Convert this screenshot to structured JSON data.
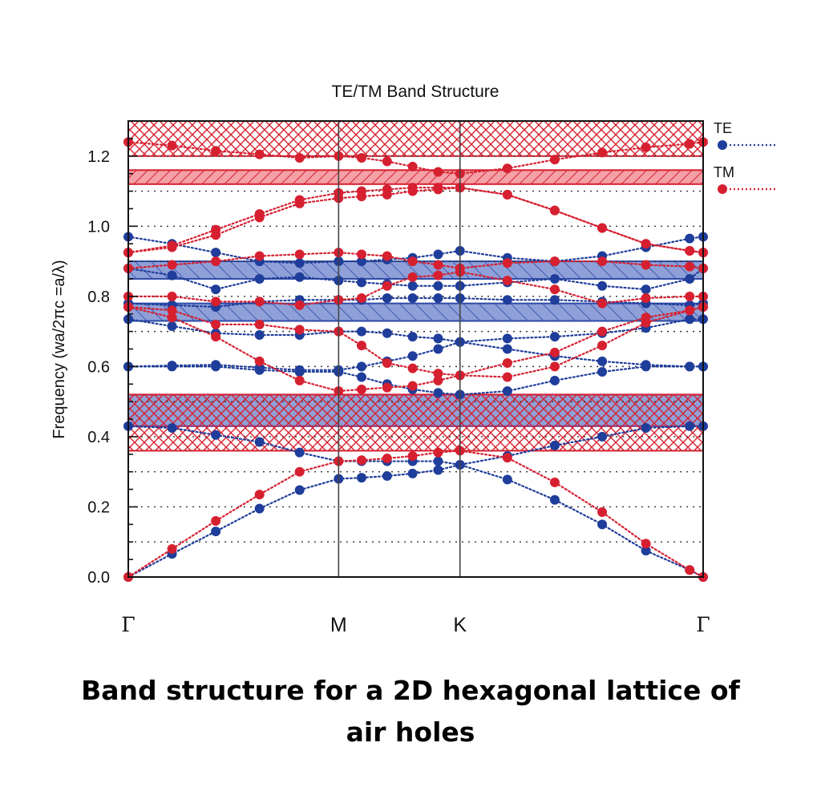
{
  "chart_data": {
    "type": "scatter",
    "title": "TE/TM Band Structure",
    "xlabel": "",
    "ylabel": "Frequency (wa/2πc =a/λ)",
    "ylim": [
      0,
      1.3
    ],
    "yticks": [
      0.0,
      0.2,
      0.4,
      0.6,
      0.8,
      1.0,
      1.2
    ],
    "ytick_labels": [
      "0.0",
      "0.2",
      "0.4",
      "0.6",
      "0.8",
      "1.0",
      "1.2"
    ],
    "x_symmetry_points": [
      {
        "label": "Γ",
        "x": 0.0
      },
      {
        "label": "M",
        "x": 0.577
      },
      {
        "label": "K",
        "x": 0.91
      },
      {
        "label": "Γ",
        "x": 1.577
      }
    ],
    "xlim": [
      0,
      1.577
    ],
    "grid": "dotted horizontal lines every 0.1",
    "legend": "right",
    "colors": {
      "TE": "#1f3d9a",
      "TM": "#d62030",
      "TE_gap": "#6b80c8",
      "TM_gap": "#e0606a"
    },
    "band_gaps": [
      {
        "name": "TE",
        "range": [
          0.85,
          0.9
        ],
        "pattern": "diagonal"
      },
      {
        "name": "TE",
        "range": [
          0.73,
          0.78
        ],
        "pattern": "diagonal"
      },
      {
        "name": "TE",
        "range": [
          0.43,
          0.52
        ],
        "pattern": "solid"
      },
      {
        "name": "TM",
        "range": [
          1.2,
          1.3
        ],
        "pattern": "crosshatch"
      },
      {
        "name": "TM",
        "range": [
          1.12,
          1.16
        ],
        "pattern": "diagonal"
      },
      {
        "name": "TM",
        "range": [
          0.36,
          0.52
        ],
        "pattern": "crosshatch"
      }
    ],
    "series": [
      {
        "name": "TE",
        "x": [
          0,
          0.12,
          0.24,
          0.36,
          0.47,
          0.577,
          0.64,
          0.71,
          0.78,
          0.85,
          0.91,
          1.04,
          1.17,
          1.3,
          1.42,
          1.54,
          1.577
        ],
        "bands": [
          [
            0,
            0.066,
            0.13,
            0.195,
            0.248,
            0.28,
            0.283,
            0.288,
            0.295,
            0.305,
            0.32,
            0.278,
            0.22,
            0.15,
            0.075,
            0.02,
            0
          ],
          [
            0.43,
            0.425,
            0.405,
            0.385,
            0.355,
            0.33,
            0.33,
            0.33,
            0.33,
            0.33,
            0.32,
            0.345,
            0.375,
            0.4,
            0.425,
            0.43,
            0.43
          ],
          [
            0.6,
            0.6,
            0.6,
            0.59,
            0.585,
            0.585,
            0.57,
            0.55,
            0.535,
            0.525,
            0.52,
            0.53,
            0.56,
            0.585,
            0.6,
            0.6,
            0.6
          ],
          [
            0.6,
            0.603,
            0.605,
            0.597,
            0.59,
            0.59,
            0.6,
            0.615,
            0.63,
            0.65,
            0.67,
            0.65,
            0.63,
            0.615,
            0.605,
            0.6,
            0.6
          ],
          [
            0.735,
            0.715,
            0.695,
            0.69,
            0.69,
            0.7,
            0.7,
            0.695,
            0.685,
            0.68,
            0.67,
            0.68,
            0.685,
            0.695,
            0.71,
            0.735,
            0.735
          ],
          [
            0.78,
            0.775,
            0.77,
            0.785,
            0.79,
            0.79,
            0.79,
            0.795,
            0.795,
            0.795,
            0.795,
            0.79,
            0.79,
            0.785,
            0.78,
            0.775,
            0.78
          ],
          [
            0.88,
            0.86,
            0.82,
            0.85,
            0.855,
            0.845,
            0.84,
            0.835,
            0.83,
            0.83,
            0.83,
            0.84,
            0.85,
            0.83,
            0.82,
            0.85,
            0.88
          ],
          [
            0.97,
            0.95,
            0.925,
            0.9,
            0.895,
            0.9,
            0.9,
            0.905,
            0.91,
            0.92,
            0.93,
            0.91,
            0.9,
            0.915,
            0.94,
            0.965,
            0.97
          ]
        ]
      },
      {
        "name": "TM",
        "x": [
          0,
          0.12,
          0.24,
          0.36,
          0.47,
          0.577,
          0.64,
          0.71,
          0.78,
          0.85,
          0.91,
          1.04,
          1.17,
          1.3,
          1.42,
          1.54,
          1.577
        ],
        "bands": [
          [
            0,
            0.08,
            0.16,
            0.235,
            0.3,
            0.33,
            0.333,
            0.338,
            0.345,
            0.355,
            0.36,
            0.34,
            0.27,
            0.185,
            0.095,
            0.02,
            0
          ],
          [
            0.77,
            0.74,
            0.685,
            0.615,
            0.56,
            0.53,
            0.535,
            0.54,
            0.545,
            0.56,
            0.575,
            0.57,
            0.6,
            0.66,
            0.725,
            0.76,
            0.77
          ],
          [
            0.77,
            0.76,
            0.72,
            0.72,
            0.705,
            0.7,
            0.66,
            0.61,
            0.595,
            0.58,
            0.575,
            0.61,
            0.64,
            0.7,
            0.74,
            0.76,
            0.77
          ],
          [
            0.8,
            0.8,
            0.785,
            0.785,
            0.775,
            0.79,
            0.795,
            0.83,
            0.855,
            0.86,
            0.87,
            0.845,
            0.82,
            0.78,
            0.795,
            0.8,
            0.8
          ],
          [
            0.88,
            0.89,
            0.9,
            0.915,
            0.92,
            0.925,
            0.92,
            0.915,
            0.9,
            0.89,
            0.88,
            0.895,
            0.9,
            0.9,
            0.89,
            0.885,
            0.88
          ],
          [
            0.925,
            0.94,
            0.975,
            1.025,
            1.065,
            1.08,
            1.085,
            1.09,
            1.1,
            1.105,
            1.11,
            1.09,
            1.045,
            0.995,
            0.95,
            0.93,
            0.925
          ],
          [
            0.925,
            0.945,
            0.99,
            1.035,
            1.075,
            1.095,
            1.1,
            1.105,
            1.11,
            1.11,
            1.11,
            1.09,
            1.045,
            0.995,
            0.95,
            0.93,
            0.925
          ],
          [
            1.24,
            1.23,
            1.215,
            1.205,
            1.195,
            1.2,
            1.195,
            1.185,
            1.17,
            1.155,
            1.15,
            1.165,
            1.19,
            1.21,
            1.225,
            1.235,
            1.24
          ]
        ]
      }
    ]
  },
  "caption": {
    "line1": "Band structure for a 2D hexagonal lattice of",
    "line2": "air holes"
  }
}
